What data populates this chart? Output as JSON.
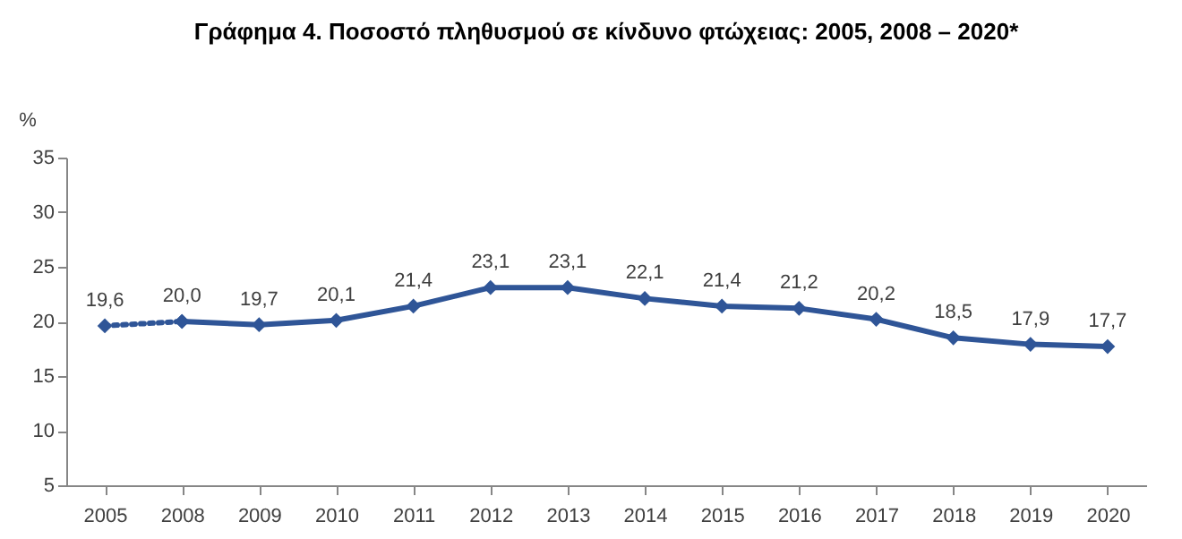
{
  "chart_data": {
    "type": "line",
    "title": "Γράφημα 4. Ποσοστό πληθυσμού σε κίνδυνο φτώχειας: 2005, 2008 – 2020*",
    "ylabel": "%",
    "categories": [
      "2005",
      "2008",
      "2009",
      "2010",
      "2011",
      "2012",
      "2013",
      "2014",
      "2015",
      "2016",
      "2017",
      "2018",
      "2019",
      "2020"
    ],
    "series": [
      {
        "color": "#2f5597",
        "line_style": "dotted",
        "values": [
          19.6,
          20.0,
          null,
          null,
          null,
          null,
          null,
          null,
          null,
          null,
          null,
          null,
          null,
          null
        ],
        "value_labels": [
          "19,6",
          null,
          null,
          null,
          null,
          null,
          null,
          null,
          null,
          null,
          null,
          null,
          null,
          null
        ]
      },
      {
        "color": "#2f5597",
        "line_style": "solid",
        "values": [
          null,
          20.0,
          19.7,
          20.1,
          21.4,
          23.1,
          23.1,
          22.1,
          21.4,
          21.2,
          20.2,
          18.5,
          17.9,
          17.7
        ],
        "value_labels": [
          null,
          "20,0",
          "19,7",
          "20,1",
          "21,4",
          "23,1",
          "23,1",
          "22,1",
          "21,4",
          "21,2",
          "20,2",
          "18,5",
          "17,9",
          "17,7"
        ]
      }
    ],
    "ylim": [
      5,
      35
    ],
    "yticks": [
      5,
      10,
      15,
      20,
      25,
      30,
      35
    ],
    "marker": "diamond",
    "grid": false
  }
}
